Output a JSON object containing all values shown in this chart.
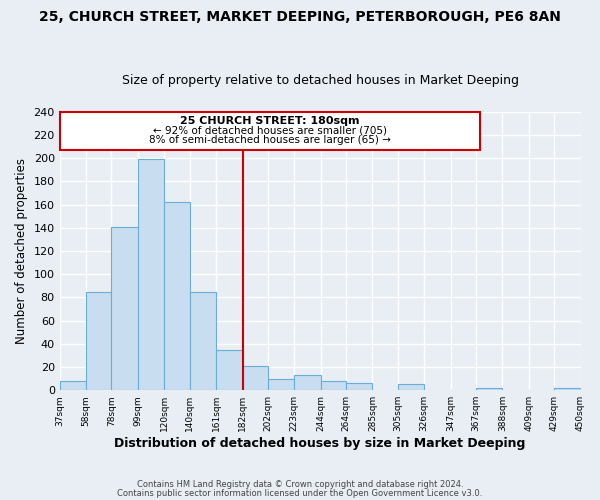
{
  "title": "25, CHURCH STREET, MARKET DEEPING, PETERBOROUGH, PE6 8AN",
  "subtitle": "Size of property relative to detached houses in Market Deeping",
  "xlabel": "Distribution of detached houses by size in Market Deeping",
  "ylabel": "Number of detached properties",
  "bin_edges": [
    37,
    58,
    78,
    99,
    120,
    140,
    161,
    182,
    202,
    223,
    244,
    264,
    285,
    305,
    326,
    347,
    367,
    388,
    409,
    429,
    450
  ],
  "bar_heights": [
    8,
    85,
    141,
    199,
    162,
    85,
    35,
    21,
    10,
    13,
    8,
    6,
    0,
    5,
    0,
    0,
    2,
    0,
    0,
    2
  ],
  "bar_color": "#c8ddf0",
  "bar_edge_color": "#6aaed6",
  "vline_x": 182,
  "vline_color": "#cc0000",
  "ylim": [
    0,
    240
  ],
  "yticks": [
    0,
    20,
    40,
    60,
    80,
    100,
    120,
    140,
    160,
    180,
    200,
    220,
    240
  ],
  "annotation_title": "25 CHURCH STREET: 180sqm",
  "annotation_line1": "← 92% of detached houses are smaller (705)",
  "annotation_line2": "8% of semi-detached houses are larger (65) →",
  "annotation_box_color": "#ffffff",
  "annotation_box_edge": "#cc0000",
  "tick_labels": [
    "37sqm",
    "58sqm",
    "78sqm",
    "99sqm",
    "120sqm",
    "140sqm",
    "161sqm",
    "182sqm",
    "202sqm",
    "223sqm",
    "244sqm",
    "264sqm",
    "285sqm",
    "305sqm",
    "326sqm",
    "347sqm",
    "367sqm",
    "388sqm",
    "409sqm",
    "429sqm",
    "450sqm"
  ],
  "footer1": "Contains HM Land Registry data © Crown copyright and database right 2024.",
  "footer2": "Contains public sector information licensed under the Open Government Licence v3.0.",
  "background_color": "#e8eef4",
  "plot_bg_color": "#e8eef4",
  "grid_color": "#ffffff",
  "title_fontsize": 10,
  "subtitle_fontsize": 9
}
